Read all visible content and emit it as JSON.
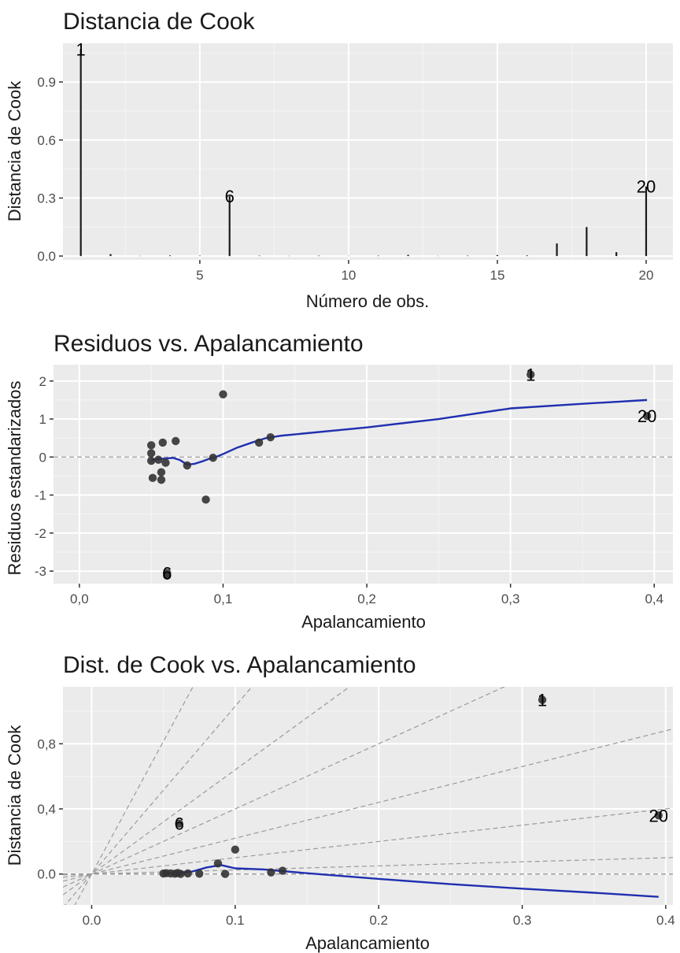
{
  "colors": {
    "panel": "#ebebeb",
    "grid_major": "#ffffff",
    "grid_minor": "#f5f5f5",
    "points": "#333333",
    "smooth": "#1f2fb0",
    "ref_line": "#9a9a9a",
    "text": "#1a1a1a",
    "tick_text": "#4d4d4d"
  },
  "chart_data": [
    {
      "type": "bar",
      "title": "Distancia de Cook",
      "xlabel": "Número de obs.",
      "ylabel": "Distancia de Cook",
      "xlim": [
        0.4,
        20.9
      ],
      "ylim": [
        -0.02,
        1.1
      ],
      "x_ticks": [
        5,
        10,
        15,
        20
      ],
      "x_tick_labels": [
        "5",
        "10",
        "15",
        "20"
      ],
      "y_ticks": [
        0,
        0.3,
        0.6,
        0.9
      ],
      "y_tick_labels": [
        "0.0",
        "0.3",
        "0.6",
        "0.9"
      ],
      "grid": true,
      "x": [
        1,
        2,
        3,
        4,
        5,
        6,
        7,
        8,
        9,
        10,
        11,
        12,
        13,
        14,
        15,
        16,
        17,
        18,
        19,
        20
      ],
      "values": [
        1.07,
        0.01,
        0.001,
        0.003,
        0.002,
        0.31,
        0.002,
        0.001,
        0.002,
        0.001,
        0.002,
        0.006,
        0.001,
        0.002,
        0.005,
        0.003,
        0.065,
        0.15,
        0.02,
        0.36
      ],
      "point_labels": [
        {
          "x": 1,
          "y": 1.07,
          "text": "1"
        },
        {
          "x": 6,
          "y": 0.31,
          "text": "6"
        },
        {
          "x": 20,
          "y": 0.36,
          "text": "20"
        }
      ]
    },
    {
      "type": "scatter",
      "title": "Residuos vs. Apalancamiento",
      "xlabel": "Apalancamiento",
      "ylabel": "Residuos estandarizados",
      "xlim": [
        -0.018,
        0.413
      ],
      "ylim": [
        -3.33,
        2.43
      ],
      "x_ticks": [
        0,
        0.1,
        0.2,
        0.3,
        0.4
      ],
      "x_tick_labels": [
        "0,0",
        "0,1",
        "0,2",
        "0,3",
        "0,4"
      ],
      "y_ticks": [
        -3,
        -2,
        -1,
        0,
        1,
        2
      ],
      "y_tick_labels": [
        "-3",
        "-2",
        "-1",
        "0",
        "1",
        "2"
      ],
      "grid": true,
      "reference_line_y": 0,
      "points": [
        {
          "x": 0.05,
          "y": 0.31
        },
        {
          "x": 0.05,
          "y": 0.1
        },
        {
          "x": 0.05,
          "y": -0.1
        },
        {
          "x": 0.051,
          "y": -0.55
        },
        {
          "x": 0.055,
          "y": -0.07
        },
        {
          "x": 0.057,
          "y": -0.4
        },
        {
          "x": 0.057,
          "y": -0.6
        },
        {
          "x": 0.058,
          "y": 0.38
        },
        {
          "x": 0.06,
          "y": -0.15
        },
        {
          "x": 0.061,
          "y": -3.05
        },
        {
          "x": 0.061,
          "y": -3.12
        },
        {
          "x": 0.067,
          "y": 0.42
        },
        {
          "x": 0.075,
          "y": -0.22
        },
        {
          "x": 0.088,
          "y": -1.12
        },
        {
          "x": 0.093,
          "y": -0.02
        },
        {
          "x": 0.1,
          "y": 1.65
        },
        {
          "x": 0.125,
          "y": 0.38
        },
        {
          "x": 0.133,
          "y": 0.52
        },
        {
          "x": 0.314,
          "y": 2.17
        },
        {
          "x": 0.395,
          "y": 1.08
        }
      ],
      "smooth_line": {
        "x": [
          0.05,
          0.055,
          0.06,
          0.065,
          0.07,
          0.075,
          0.08,
          0.085,
          0.09,
          0.095,
          0.1,
          0.11,
          0.12,
          0.13,
          0.14,
          0.2,
          0.25,
          0.3,
          0.35,
          0.395
        ],
        "y": [
          -0.08,
          -0.05,
          -0.04,
          -0.02,
          -0.08,
          -0.2,
          -0.18,
          -0.12,
          -0.05,
          0,
          0.08,
          0.25,
          0.38,
          0.5,
          0.56,
          0.78,
          1.0,
          1.28,
          1.4,
          1.5
        ]
      },
      "point_labels": [
        {
          "x": 0.314,
          "y": 2.17,
          "text": "1"
        },
        {
          "x": 0.061,
          "y": -3.05,
          "text": "6"
        },
        {
          "x": 0.395,
          "y": 1.08,
          "text": "20"
        }
      ]
    },
    {
      "type": "scatter",
      "title": "Dist. de Cook vs. Apalancamiento",
      "xlabel": "Apalancamiento",
      "ylabel": "Distancia de Cook",
      "xlim": [
        -0.02,
        0.405
      ],
      "ylim": [
        -0.19,
        1.15
      ],
      "x_ticks": [
        0,
        0.1,
        0.2,
        0.3,
        0.4
      ],
      "x_tick_labels": [
        "0.0",
        "0.1",
        "0.2",
        "0.3",
        "0.4"
      ],
      "y_ticks": [
        0,
        0.4,
        0.8
      ],
      "y_tick_labels": [
        "0.0",
        "0,4",
        "0,8"
      ],
      "grid": true,
      "contour_slopes": [
        0.25,
        1,
        2.2,
        4,
        6.4,
        10.3,
        16.3
      ],
      "points": [
        {
          "x": 0.05,
          "y": 0.003
        },
        {
          "x": 0.052,
          "y": 0.005
        },
        {
          "x": 0.055,
          "y": 0.004
        },
        {
          "x": 0.058,
          "y": 0.002
        },
        {
          "x": 0.06,
          "y": 0.006
        },
        {
          "x": 0.062,
          "y": 0.001
        },
        {
          "x": 0.061,
          "y": 0.31
        },
        {
          "x": 0.067,
          "y": 0.004
        },
        {
          "x": 0.075,
          "y": 0.002
        },
        {
          "x": 0.088,
          "y": 0.065
        },
        {
          "x": 0.093,
          "y": 0.001
        },
        {
          "x": 0.1,
          "y": 0.15
        },
        {
          "x": 0.125,
          "y": 0.01
        },
        {
          "x": 0.133,
          "y": 0.02
        },
        {
          "x": 0.314,
          "y": 1.07
        },
        {
          "x": 0.395,
          "y": 0.36
        }
      ],
      "smooth_line": {
        "x": [
          0.05,
          0.06,
          0.07,
          0.08,
          0.09,
          0.095,
          0.1,
          0.12,
          0.15,
          0.2,
          0.25,
          0.3,
          0.35,
          0.395
        ],
        "y": [
          0.003,
          0.006,
          0.015,
          0.04,
          0.055,
          0.045,
          0.035,
          0.028,
          0.005,
          -0.03,
          -0.062,
          -0.09,
          -0.115,
          -0.14
        ]
      },
      "point_labels": [
        {
          "x": 0.314,
          "y": 1.07,
          "text": "1"
        },
        {
          "x": 0.061,
          "y": 0.31,
          "text": "6"
        },
        {
          "x": 0.395,
          "y": 0.36,
          "text": "20"
        }
      ]
    }
  ]
}
